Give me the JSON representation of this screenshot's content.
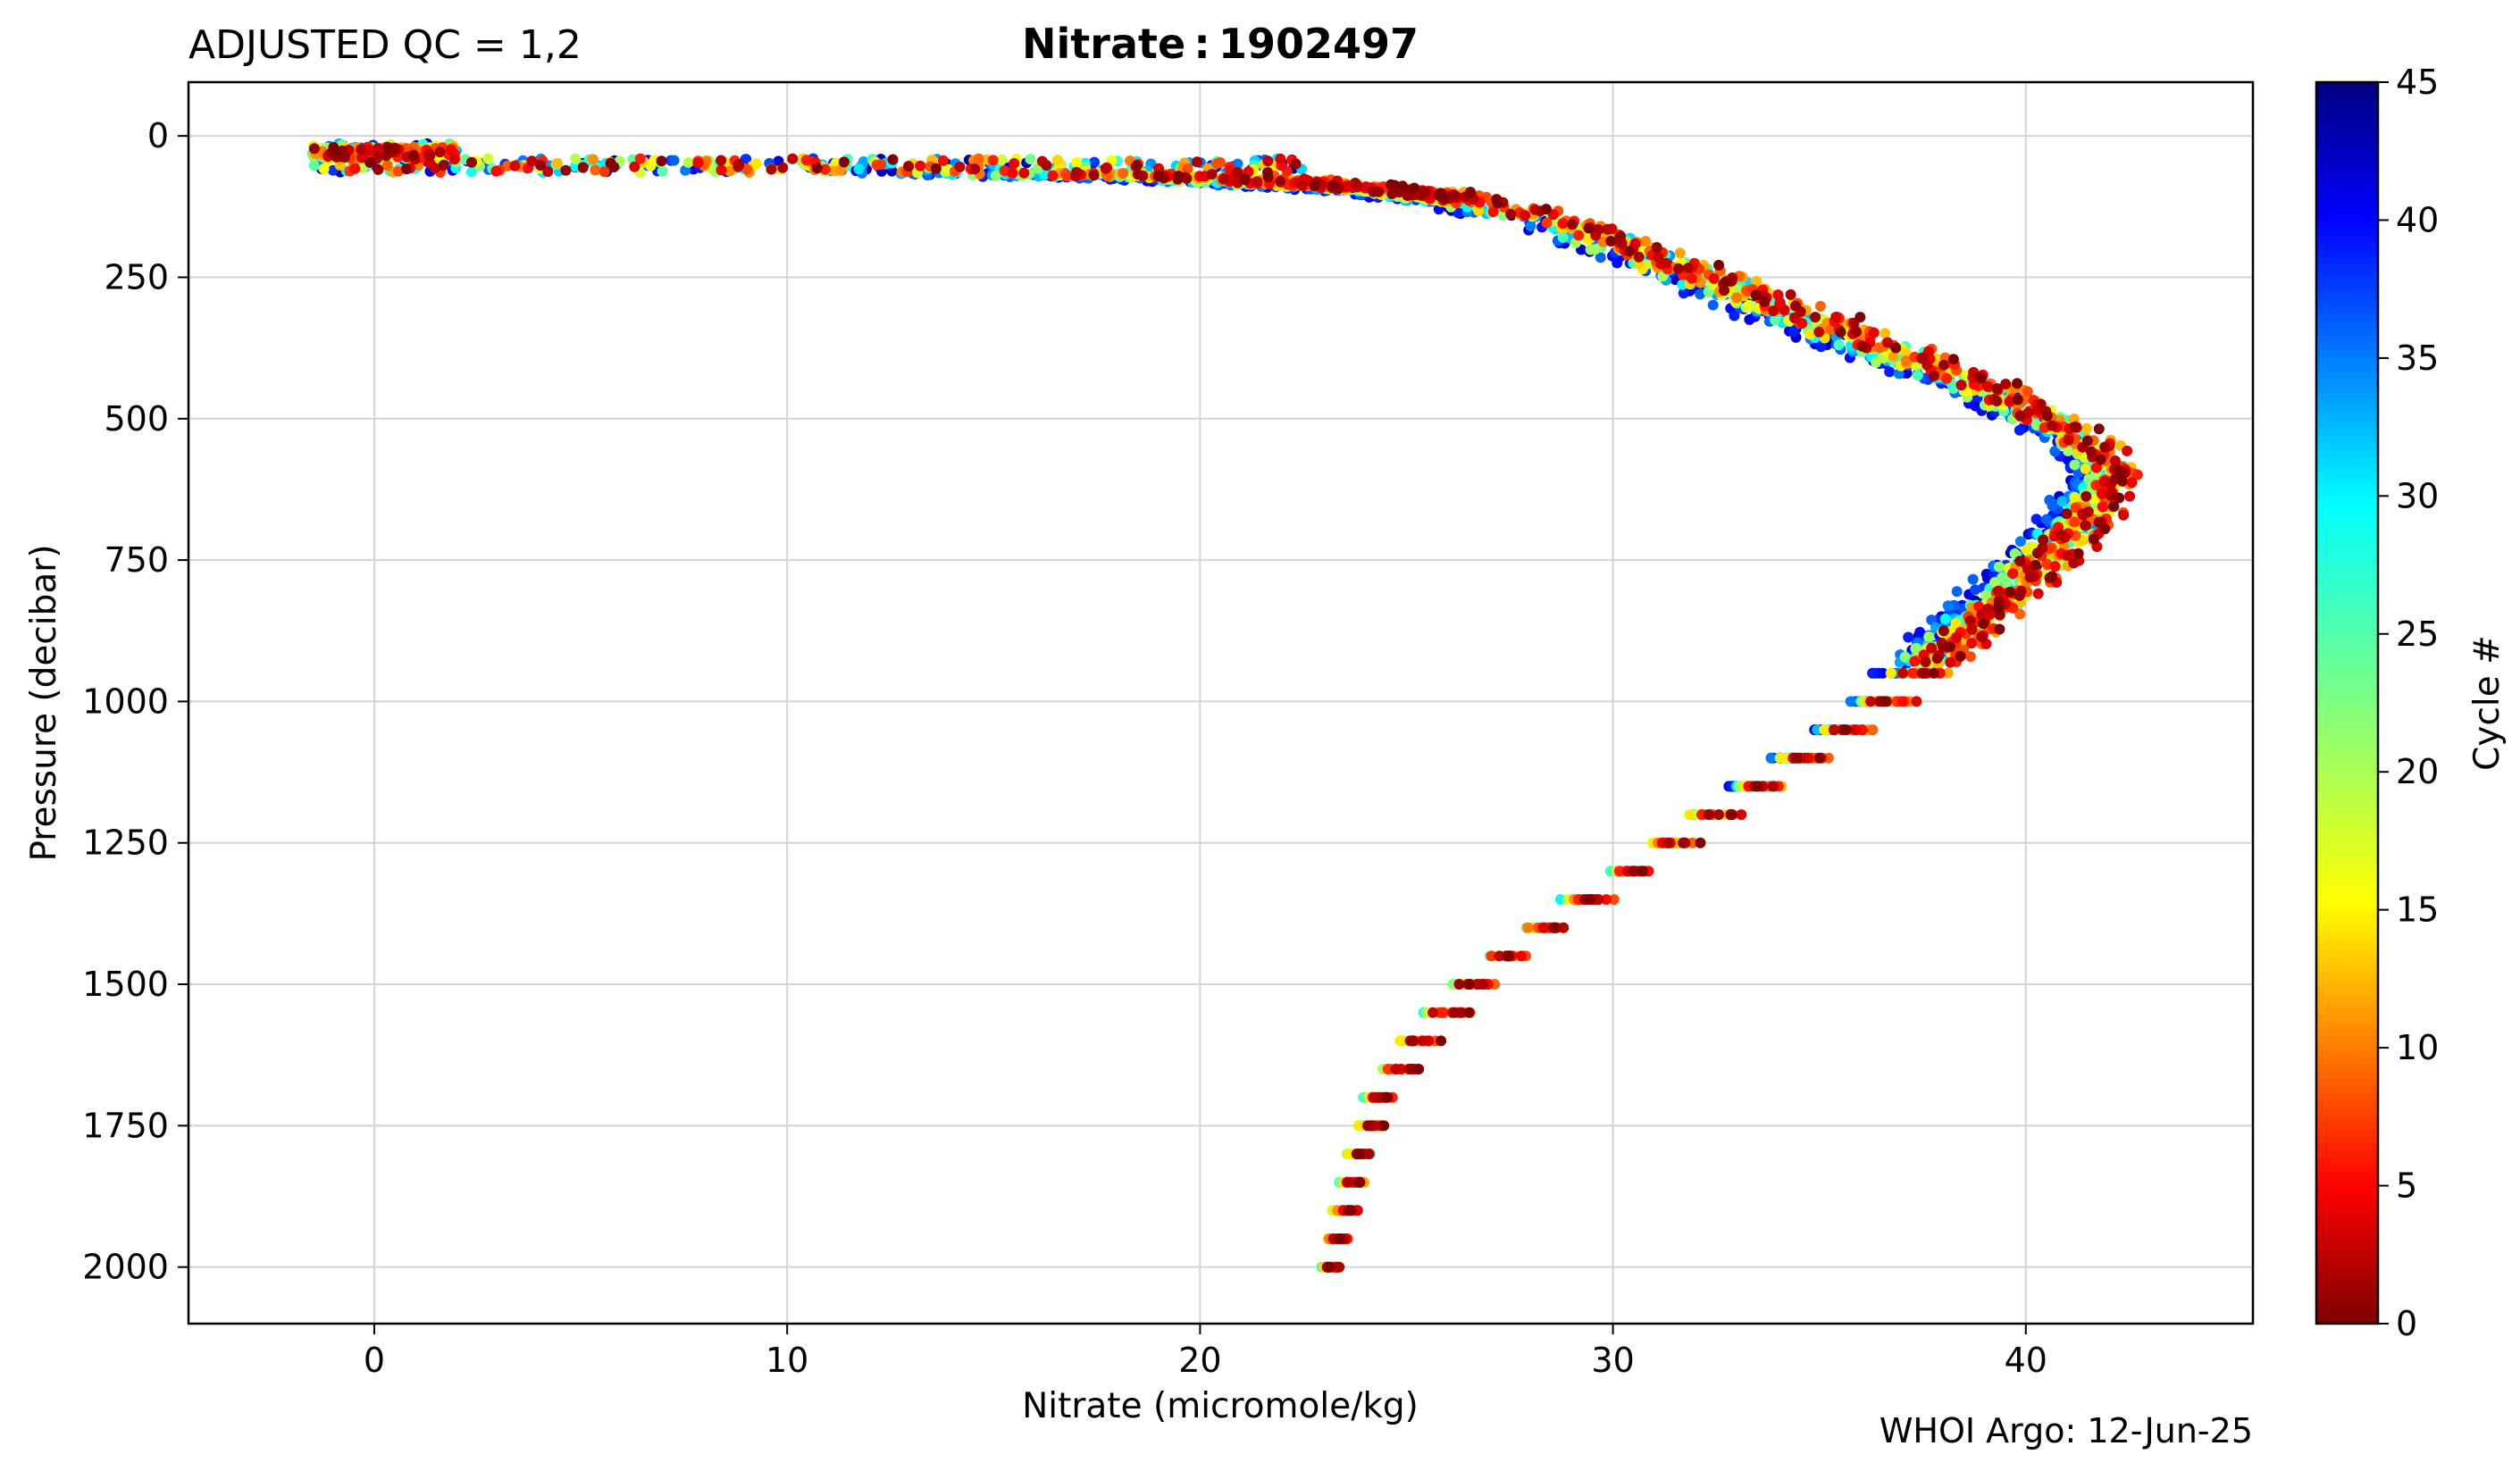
{
  "chart_data": {
    "type": "scatter",
    "title": "Nitrate : 1902497",
    "subtitle": "ADJUSTED QC = 1,2",
    "xlabel": "Nitrate  (micromole/kg)",
    "ylabel": "Pressure  (decibar)",
    "xlim": [
      -4.5,
      45.5
    ],
    "ylim": [
      2100,
      -95
    ],
    "y_inverted": true,
    "x_ticks": [
      0,
      10,
      20,
      30,
      40
    ],
    "y_ticks": [
      0,
      250,
      500,
      750,
      1000,
      1250,
      1500,
      1750,
      2000
    ],
    "grid": true,
    "colorbar": {
      "label": "Cycle #",
      "range": [
        0,
        45
      ],
      "ticks": [
        0,
        5,
        10,
        15,
        20,
        25,
        30,
        35,
        40,
        45
      ],
      "colormap": "jet"
    },
    "profile_envelope": [
      {
        "pressure": 30,
        "nitrate": 0.5,
        "spread": 1.2
      },
      {
        "pressure": 55,
        "nitrate": 10,
        "spread": 7
      },
      {
        "pressure": 75,
        "nitrate": 20,
        "spread": 2.5
      },
      {
        "pressure": 100,
        "nitrate": 25,
        "spread": 1.4
      },
      {
        "pressure": 150,
        "nitrate": 28.5,
        "spread": 1.2
      },
      {
        "pressure": 250,
        "nitrate": 32,
        "spread": 1.2
      },
      {
        "pressure": 350,
        "nitrate": 35.5,
        "spread": 1.3
      },
      {
        "pressure": 450,
        "nitrate": 39,
        "spread": 1.1
      },
      {
        "pressure": 550,
        "nitrate": 41.5,
        "spread": 0.8
      },
      {
        "pressure": 600,
        "nitrate": 42,
        "spread": 0.8
      },
      {
        "pressure": 700,
        "nitrate": 41,
        "spread": 1
      },
      {
        "pressure": 800,
        "nitrate": 39.5,
        "spread": 1
      },
      {
        "pressure": 900,
        "nitrate": 38,
        "spread": 0.9
      },
      {
        "pressure": 1000,
        "nitrate": 36.5,
        "spread": 0.8
      },
      {
        "pressure": 1100,
        "nitrate": 34.5,
        "spread": 0.7
      },
      {
        "pressure": 1200,
        "nitrate": 32.3,
        "spread": 0.7
      },
      {
        "pressure": 1300,
        "nitrate": 30.3,
        "spread": 0.7
      },
      {
        "pressure": 1400,
        "nitrate": 28.2,
        "spread": 0.7
      },
      {
        "pressure": 1500,
        "nitrate": 26.5,
        "spread": 0.6
      },
      {
        "pressure": 1600,
        "nitrate": 25.2,
        "spread": 0.6
      },
      {
        "pressure": 1700,
        "nitrate": 24.3,
        "spread": 0.5
      },
      {
        "pressure": 1800,
        "nitrate": 23.8,
        "spread": 0.4
      },
      {
        "pressure": 1900,
        "nitrate": 23.4,
        "spread": 0.4
      },
      {
        "pressure": 2000,
        "nitrate": 23.1,
        "spread": 0.3
      }
    ]
  },
  "credit": "WHOI Argo: 12-Jun-25"
}
